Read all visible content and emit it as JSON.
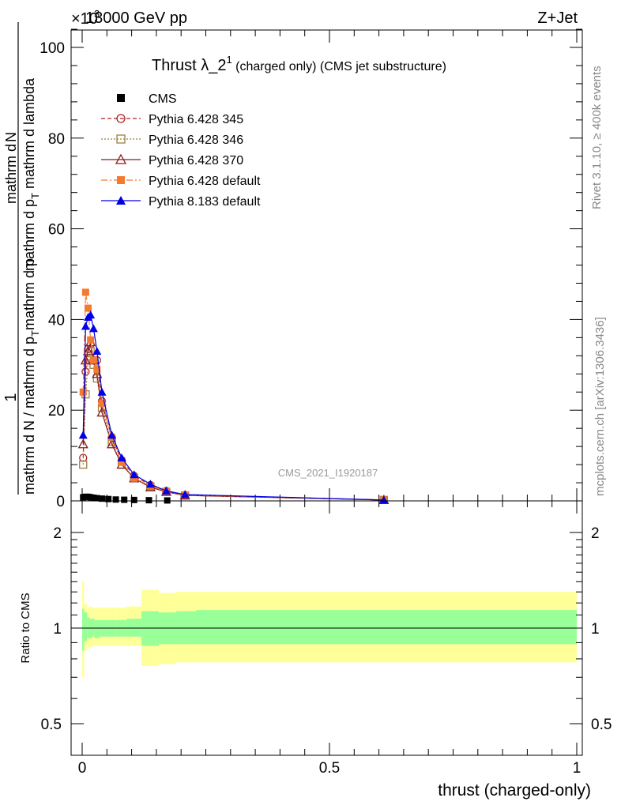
{
  "header": {
    "energy": "13000 GeV pp",
    "process": "Z+Jet",
    "exponent": "×10",
    "exponent_power": "3"
  },
  "side_labels": {
    "rivet": "Rivet 3.1.10, ≥ 400k events",
    "mcplots": "mcplots.cern.ch [arXiv:1306.3436]"
  },
  "watermark": "CMS_2021_I1920187",
  "colors": {
    "cms": "#000000",
    "p345": "#b22222",
    "p346": "#9b7f3f",
    "p370": "#8b1a1a",
    "p6def": "#f47a30",
    "p8def": "#0000e6",
    "band_inner": "#99ff99",
    "band_outer": "#ffff99"
  },
  "chart_data": [
    {
      "type": "line",
      "title": "Thrust λ_2",
      "title_sup": "1",
      "title_suffix": " (charged only) (CMS jet substructure)",
      "ylabel_numerator": "1",
      "ylabel_den_line1": "mathrm d N / mathrm d p",
      "ylabel_den_line2": "mathrm d p",
      "ylabel_den_sub": "T",
      "ylabel_num_line1": "mathrm d",
      "ylabel_num_line2": "N",
      "ylabel_num_line3": "mathrm d p",
      "ylabel_num_sub": "T",
      "ylabel_num_line4": " mathrm d lambda",
      "xlim": [
        0,
        1
      ],
      "ylim": [
        0,
        105
      ],
      "yticks": [
        0,
        20,
        40,
        60,
        80,
        100
      ],
      "ytick_labels": [
        "0",
        "20",
        "40",
        "60",
        "80",
        "100"
      ],
      "series": [
        {
          "name": "CMS",
          "key": "cms",
          "marker": "square-filled",
          "x": [
            0.002,
            0.007,
            0.012,
            0.017,
            0.023,
            0.03,
            0.04,
            0.053,
            0.068,
            0.085,
            0.105,
            0.135,
            0.172
          ],
          "y": [
            0.8,
            0.9,
            0.9,
            0.8,
            0.7,
            0.6,
            0.5,
            0.4,
            0.3,
            0.25,
            0.2,
            0.15,
            0.1
          ]
        },
        {
          "name": "Pythia 6.428 345",
          "key": "p345",
          "marker": "circle-open",
          "dash": "5,3",
          "x": [
            0.002,
            0.007,
            0.012,
            0.017,
            0.023,
            0.03,
            0.04,
            0.06,
            0.08,
            0.105,
            0.138,
            0.17,
            0.208,
            0.61
          ],
          "y": [
            9.5,
            28.5,
            33.5,
            34.5,
            31.0,
            31.0,
            22.0,
            14.0,
            9.0,
            5.5,
            3.5,
            2.2,
            1.3,
            0.2
          ]
        },
        {
          "name": "Pythia 6.428 346",
          "key": "p346",
          "marker": "square-open",
          "dash": "2,2",
          "x": [
            0.002,
            0.007,
            0.012,
            0.017,
            0.023,
            0.03,
            0.04,
            0.06,
            0.08,
            0.105,
            0.138,
            0.17,
            0.208,
            0.61
          ],
          "y": [
            8.0,
            23.5,
            31.0,
            33.0,
            30.0,
            27.0,
            20.5,
            13.0,
            8.0,
            5.0,
            3.2,
            2.0,
            1.2,
            0.2
          ]
        },
        {
          "name": "Pythia 6.428 370",
          "key": "p370",
          "marker": "triangle-open",
          "dash": "",
          "x": [
            0.002,
            0.007,
            0.012,
            0.017,
            0.023,
            0.03,
            0.04,
            0.06,
            0.08,
            0.105,
            0.138,
            0.17,
            0.208,
            0.61
          ],
          "y": [
            12.5,
            31.0,
            33.0,
            35.0,
            31.0,
            28.0,
            19.5,
            12.5,
            8.0,
            5.0,
            3.0,
            2.0,
            1.2,
            0.2
          ]
        },
        {
          "name": "Pythia 6.428 default",
          "key": "p6def",
          "marker": "square-filled",
          "dash": "8,3,2,3",
          "x": [
            0.002,
            0.007,
            0.012,
            0.017,
            0.023,
            0.03,
            0.04,
            0.06,
            0.08,
            0.105,
            0.138,
            0.17,
            0.208,
            0.61
          ],
          "y": [
            24.0,
            46.0,
            42.5,
            35.5,
            31.0,
            29.0,
            21.5,
            14.0,
            8.5,
            5.0,
            3.3,
            2.1,
            1.3,
            0.2
          ]
        },
        {
          "name": "Pythia 8.183 default",
          "key": "p8def",
          "marker": "triangle-filled",
          "dash": "",
          "x": [
            0.002,
            0.007,
            0.012,
            0.017,
            0.023,
            0.03,
            0.04,
            0.06,
            0.08,
            0.105,
            0.138,
            0.17,
            0.208,
            0.61
          ],
          "y": [
            14.5,
            38.5,
            40.5,
            41.0,
            38.0,
            33.0,
            24.0,
            14.5,
            9.5,
            5.8,
            3.7,
            2.2,
            1.4,
            0.2
          ]
        }
      ]
    },
    {
      "type": "area",
      "ylabel": "Ratio to CMS",
      "xlabel": "thrust (charged-only)",
      "xlim": [
        0,
        1
      ],
      "ylim": [
        0.4,
        2.4
      ],
      "yscale": "log",
      "xticks": [
        0,
        0.5,
        1
      ],
      "xtick_labels": [
        "0",
        "0.5",
        "1"
      ],
      "yticks": [
        0.5,
        1,
        2
      ],
      "ytick_labels": [
        "0.5",
        "1",
        "2"
      ],
      "reference_line": 1,
      "bins": [
        0,
        0.004,
        0.01,
        0.015,
        0.02,
        0.025,
        0.035,
        0.05,
        0.07,
        0.09,
        0.12,
        0.155,
        0.19,
        0.23,
        1.0
      ],
      "inner_band": [
        [
          0.85,
          1.15
        ],
        [
          0.91,
          1.12
        ],
        [
          0.93,
          1.08
        ],
        [
          0.93,
          1.07
        ],
        [
          0.94,
          1.07
        ],
        [
          0.93,
          1.06
        ],
        [
          0.94,
          1.06
        ],
        [
          0.94,
          1.06
        ],
        [
          0.94,
          1.06
        ],
        [
          0.94,
          1.07
        ],
        [
          0.88,
          1.13
        ],
        [
          0.89,
          1.12
        ],
        [
          0.89,
          1.13
        ],
        [
          0.89,
          1.14
        ]
      ],
      "outer_band": [
        [
          0.7,
          1.4
        ],
        [
          0.85,
          1.19
        ],
        [
          0.87,
          1.16
        ],
        [
          0.87,
          1.17
        ],
        [
          0.88,
          1.16
        ],
        [
          0.88,
          1.16
        ],
        [
          0.88,
          1.16
        ],
        [
          0.88,
          1.16
        ],
        [
          0.88,
          1.16
        ],
        [
          0.88,
          1.17
        ],
        [
          0.76,
          1.32
        ],
        [
          0.77,
          1.29
        ],
        [
          0.78,
          1.3
        ],
        [
          0.78,
          1.3
        ]
      ]
    }
  ]
}
